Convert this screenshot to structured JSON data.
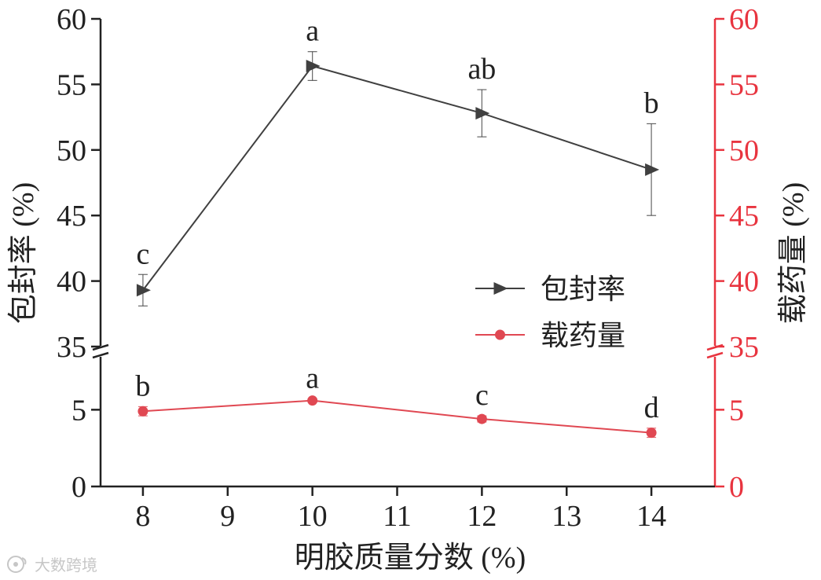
{
  "chart_data": {
    "type": "line",
    "x": [
      8,
      10,
      12,
      14
    ],
    "xlabel": "明胶质量分数 (%)",
    "xticks": [
      "8",
      "9",
      "10",
      "11",
      "12",
      "13",
      "14"
    ],
    "xlim": [
      7.5,
      14.75
    ],
    "y_broken_axis": {
      "lower_range": [
        0,
        8.5
      ],
      "upper_range": [
        35,
        60
      ]
    },
    "left_axis": {
      "ylabel": "包封率 (%)",
      "color": "#222222",
      "ticks_upper": [
        "35",
        "40",
        "45",
        "50",
        "55",
        "60"
      ],
      "ticks_lower": [
        "0",
        "5"
      ]
    },
    "right_axis": {
      "ylabel": "载药量 (%)",
      "color": "#e8343f",
      "ticks_upper": [
        "35",
        "40",
        "45",
        "50",
        "55",
        "60"
      ],
      "ticks_lower": [
        "0",
        "5"
      ]
    },
    "series": [
      {
        "name": "包封率",
        "color": "#404040",
        "marker": "triangle-right",
        "values": [
          39.3,
          56.4,
          52.8,
          48.5
        ],
        "errors": [
          1.2,
          1.1,
          1.8,
          3.5
        ],
        "labels": [
          "c",
          "a",
          "ab",
          "b"
        ]
      },
      {
        "name": "载药量",
        "color": "#e04852",
        "marker": "circle",
        "values": [
          4.9,
          5.6,
          4.4,
          3.5
        ],
        "errors": [
          0.3,
          0.1,
          0.2,
          0.3
        ],
        "labels": [
          "b",
          "a",
          "c",
          "d"
        ]
      }
    ],
    "legend": {
      "position": "center-right"
    }
  },
  "watermark": {
    "text": "大数跨境",
    "icon": "weibo-like-logo-icon"
  }
}
